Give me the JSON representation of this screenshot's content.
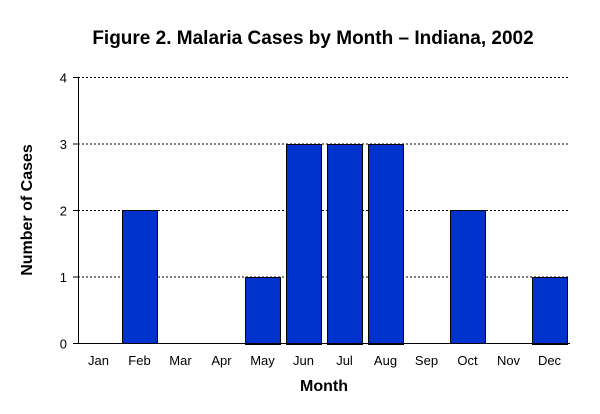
{
  "chart_data": {
    "type": "bar",
    "title": "Figure 2. Malaria Cases by Month – Indiana, 2002",
    "xlabel": "Month",
    "ylabel": "Number of Cases",
    "categories": [
      "Jan",
      "Feb",
      "Mar",
      "Apr",
      "May",
      "Jun",
      "Jul",
      "Aug",
      "Sep",
      "Oct",
      "Nov",
      "Dec"
    ],
    "values": [
      0,
      2,
      0,
      0,
      1,
      3,
      3,
      3,
      0,
      2,
      0,
      1
    ],
    "ylim": [
      0,
      4
    ],
    "yticks": [
      0,
      1,
      2,
      3,
      4
    ],
    "grid": "horizontal dotted",
    "legend": "none",
    "bar_color": "#0033CC"
  }
}
